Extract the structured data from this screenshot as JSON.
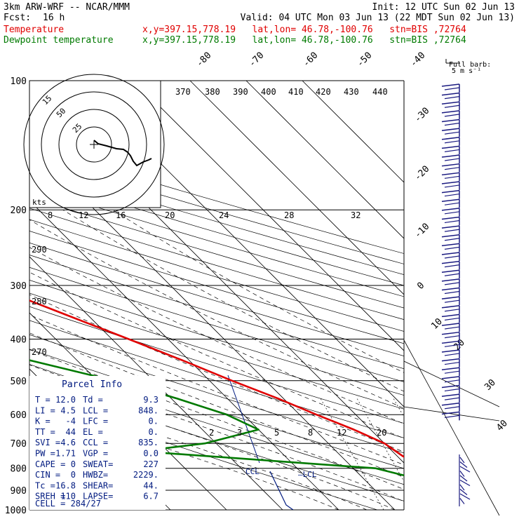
{
  "header": {
    "model": "3km ARW-WRF -- NCAR/MMM",
    "init": "Init: 12 UTC Sun 02 Jun 13",
    "fcst_label": "Fcst:",
    "fcst_value": "16 h",
    "valid": "Valid: 04 UTC Mon 03 Jun 13 (22 MDT Sun 02 Jun 13)",
    "temp_label": "Temperature",
    "dew_label": "Dewpoint temperature",
    "location": "x,y=397.15,778.19   lat,lon= 46.78,-100.76   stn=BIS ,72764",
    "barb_title": "Full barb:",
    "barb_unit": "5 m s⁻¹"
  },
  "colors": {
    "temperature": "#e00000",
    "dewpoint": "#007a00",
    "parcel": "#001a80",
    "barb": "#1a1a80",
    "isotherm": "#000000"
  },
  "chart_data": {
    "type": "line",
    "title": "",
    "pressure_levels": [
      100,
      200,
      300,
      400,
      500,
      600,
      700,
      800,
      900,
      1000
    ],
    "pressure_scale": "log",
    "temperature_isotherm_labels": [
      -80,
      -70,
      -60,
      -50,
      -40,
      -30,
      -20,
      -10,
      0,
      10,
      20,
      30,
      40
    ],
    "dry_adiabat_labels": [
      370,
      380,
      390,
      400,
      410,
      420,
      430,
      440,
      290,
      280,
      270
    ],
    "mixing_ratio_labels_top": [
      8,
      12,
      16,
      20,
      24,
      28,
      32
    ],
    "mixing_ratio_labels_bottom": [
      2,
      3,
      5,
      8,
      12,
      20
    ],
    "series": [
      {
        "name": "Temperature",
        "points": [
          [
            100,
            -62
          ],
          [
            130,
            -62
          ],
          [
            170,
            -62
          ],
          [
            185,
            -62
          ],
          [
            200,
            -60
          ],
          [
            230,
            -54
          ],
          [
            260,
            -48
          ],
          [
            300,
            -42
          ],
          [
            350,
            -34
          ],
          [
            400,
            -27
          ],
          [
            450,
            -21
          ],
          [
            500,
            -16
          ],
          [
            550,
            -11
          ],
          [
            600,
            -7
          ],
          [
            650,
            -3
          ],
          [
            700,
            0
          ],
          [
            750,
            1
          ],
          [
            800,
            3
          ],
          [
            850,
            7
          ],
          [
            880,
            10
          ],
          [
            900,
            12
          ],
          [
            920,
            13
          ],
          [
            940,
            12
          ]
        ]
      },
      {
        "name": "Dewpoint temperature",
        "points": [
          [
            100,
            -68
          ],
          [
            140,
            -72
          ],
          [
            165,
            -79
          ],
          [
            185,
            -78
          ],
          [
            200,
            -74
          ],
          [
            250,
            -73
          ],
          [
            300,
            -68
          ],
          [
            350,
            -64
          ],
          [
            400,
            -60
          ],
          [
            450,
            -48
          ],
          [
            500,
            -37
          ],
          [
            550,
            -29
          ],
          [
            600,
            -23
          ],
          [
            650,
            -20
          ],
          [
            700,
            -32
          ],
          [
            730,
            -45
          ],
          [
            800,
            -6
          ],
          [
            850,
            0
          ],
          [
            900,
            1
          ],
          [
            940,
            0
          ]
        ]
      }
    ],
    "parcel_labels": [
      "CCL",
      "LCL"
    ],
    "hodograph": {
      "ring_labels": [
        "15",
        "50",
        "25"
      ],
      "kts_label": "kts"
    },
    "wind_barbs_count": 38
  },
  "parcel_info": {
    "title": "Parcel Info",
    "rows": [
      [
        "T  =",
        "12.0",
        "Td =",
        "9.3"
      ],
      [
        "LI =",
        "4.5",
        "LCL =",
        "848."
      ],
      [
        "K  =",
        "-4",
        "LFC =",
        "0."
      ],
      [
        "TT =",
        "44",
        "EL =",
        "0."
      ],
      [
        "SVI =",
        "4.6",
        "CCL =",
        "835."
      ],
      [
        "PW =",
        "1.71",
        "VGP =",
        "0.0"
      ],
      [
        "CAPE =",
        "0",
        "SWEAT=",
        "227"
      ],
      [
        "CIN =",
        "0",
        "HWBZ=",
        "2229."
      ],
      [
        "Tc =",
        "16.8",
        "SHEAR=",
        "44."
      ],
      [
        "SREH =",
        "110",
        "LAPSE=",
        "6.7"
      ]
    ],
    "cell": "CELL = 284/27"
  }
}
